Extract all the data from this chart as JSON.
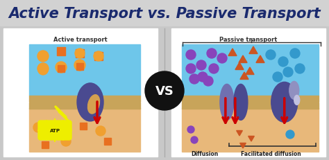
{
  "title": "Active Transport vs. Passive Transport",
  "title_color": "#1a2a6e",
  "title_fontsize": 15,
  "title_fontstyle": "italic",
  "title_fontweight": "bold",
  "background_color": "#c8c8c8",
  "left_label": "Active transport",
  "right_label": "Passive transport",
  "bottom_right_labels": [
    "Diffusion",
    "Facilitated diffusion"
  ],
  "vs_circle_color": "#111111",
  "vs_text_color": "#ffffff",
  "sky_blue": "#6ec6ea",
  "sandy": "#e8b87a",
  "membrane_stripe": "#c8a45a",
  "protein_dark": "#4a4a90",
  "protein_mid": "#7070b0",
  "orange_mol": "#e87020",
  "orange_sphere": "#f0a030",
  "purple_mol": "#8844bb",
  "blue_mol": "#3399cc",
  "red_arrow": "#cc0000",
  "atp_yellow": "#eeee00"
}
